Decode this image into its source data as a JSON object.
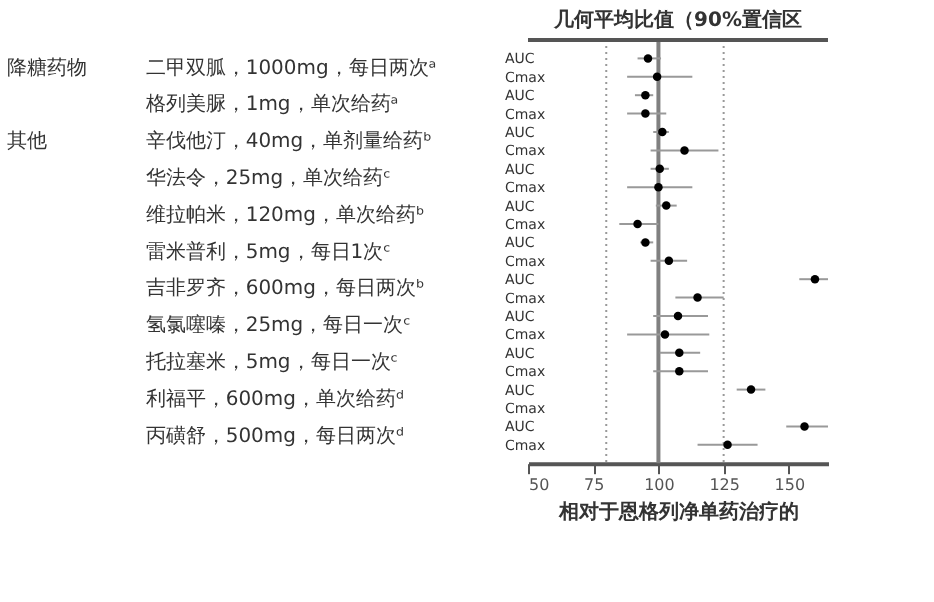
{
  "chart_data": {
    "type": "scatter",
    "orientation": "horizontal",
    "title": "几何平均比值（90%置信区",
    "xlabel": "相对于恩格列净单药治疗的",
    "categories": [
      "AUC",
      "Cmax",
      "AUC",
      "Cmax",
      "AUC",
      "Cmax",
      "AUC",
      "Cmax",
      "AUC",
      "Cmax",
      "AUC",
      "Cmax",
      "AUC",
      "Cmax",
      "AUC",
      "Cmax",
      "AUC",
      "Cmax",
      "AUC",
      "Cmax",
      "AUC",
      "Cmax"
    ],
    "series": [
      {
        "color": "#000000",
        "values": [
          96,
          99.5,
          95,
          95,
          101.5,
          110,
          100.5,
          100,
          103,
          92,
          95,
          104,
          160,
          115,
          107.5,
          102.5,
          108,
          108,
          135.5,
          null,
          156,
          126.5
        ],
        "errors": [
          [
            92,
            101
          ],
          [
            88,
            113
          ],
          [
            91,
            98
          ],
          [
            88,
            103
          ],
          [
            98,
            104
          ],
          [
            97,
            123
          ],
          [
            97,
            104
          ],
          [
            88,
            113
          ],
          [
            99,
            107
          ],
          [
            85,
            100
          ],
          [
            93,
            98
          ],
          [
            97,
            111
          ],
          [
            154,
            165
          ],
          [
            106.5,
            125
          ],
          [
            98,
            119
          ],
          [
            88,
            119.5
          ],
          [
            100.5,
            116
          ],
          [
            98,
            119
          ],
          [
            130,
            141
          ],
          null,
          [
            149,
            165
          ],
          [
            115,
            138
          ]
        ]
      }
    ],
    "annotations": [
      "降糖药物",
      "二甲双胍，1000mg，每日两次ᵃ",
      "格列美脲，1mg，单次给药ᵃ",
      "其他",
      "辛伐他汀，40mg，单剂量给药ᵇ",
      "华法令，25mg，单次给药ᶜ",
      "维拉帕米，120mg，单次给药ᵇ",
      "雷米普利，5mg，每日1次ᶜ",
      "吉非罗齐，600mg，每日两次ᵇ",
      "氢氯噻嗪，25mg，每日一次ᶜ",
      "托拉塞米，5mg，每日一次ᶜ",
      "利福平，600mg，单次给药ᵈ",
      "丙磺舒，500mg，每日两次ᵈ"
    ],
    "xlim": [
      50,
      165
    ],
    "xticks": [
      50,
      75,
      100,
      125,
      150
    ],
    "ref_lines": [
      {
        "axis": "x",
        "value": 100,
        "color": "#808080",
        "line_style": "solid"
      },
      {
        "axis": "x",
        "value": 80,
        "color": "#999999",
        "line_style": "dotted"
      },
      {
        "axis": "x",
        "value": 125,
        "color": "#999999",
        "line_style": "dotted"
      }
    ],
    "grid": false,
    "marker": "circle"
  }
}
